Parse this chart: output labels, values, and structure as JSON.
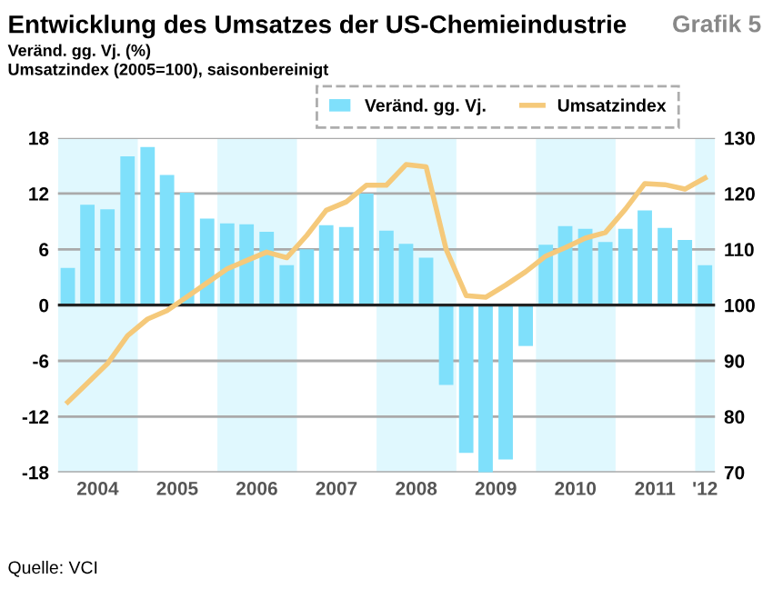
{
  "chart_data": {
    "type": "bar",
    "title": "Entwicklung des Umsatzes der US-Chemieindustrie",
    "subtitle": "Veränd. gg. Vj. (%)\nUmsatzindex (2005=100), saisonbereinigt",
    "x": [
      "2004-02-15",
      "2004-05-15",
      "2004-08-15",
      "2004-11-15",
      "2005-02-15",
      "2005-05-15",
      "2005-08-15",
      "2005-11-15",
      "2006-02-15",
      "2006-05-15",
      "2006-08-15",
      "2006-11-15",
      "2007-02-15",
      "2007-05-15",
      "2007-08-15",
      "2007-11-15",
      "2008-02-15",
      "2008-05-15",
      "2008-08-15",
      "2008-11-15",
      "2009-02-15",
      "2009-05-15",
      "2009-08-15",
      "2009-11-15",
      "2010-02-15",
      "2010-05-15",
      "2010-08-15",
      "2010-11-15",
      "2011-02-15",
      "2011-05-15",
      "2011-08-15",
      "2011-11-15",
      "2012-02-15"
    ],
    "series": [
      {
        "name": "Veränd. gg. Vj.",
        "color": "#7fe0fb",
        "values": [
          4,
          10.8,
          10.3,
          16,
          17,
          14,
          12.1,
          9.3,
          8.8,
          8.7,
          7.9,
          4.3,
          6,
          8.6,
          8.4,
          12,
          8,
          6.6,
          5.1,
          -8.6,
          -15.9,
          -18,
          -16.6,
          -4.4,
          6.5,
          8.5,
          8.2,
          6.8,
          8.2,
          10.2,
          8.3,
          7,
          4.3
        ]
      },
      {
        "name": "Umsatzindex",
        "type": "line",
        "axis": "y2",
        "color": "#f5c97a",
        "values": [
          82.6,
          86,
          89.5,
          94.5,
          97.5,
          99,
          101.5,
          104,
          106.5,
          108,
          109.5,
          108.5,
          112.5,
          117,
          118.5,
          121.5,
          121.5,
          125.2,
          124.8,
          110,
          101.7,
          101.4,
          103.6,
          106,
          108.8,
          110.3,
          112,
          113,
          117.2,
          121.8,
          121.6,
          120.8,
          122.8
        ]
      }
    ],
    "xlim": [
      "2004-01-01",
      "2012-04-01"
    ],
    "xticks": [
      {
        "value": "2004-07-01",
        "label": "2004"
      },
      {
        "value": "2005-07-01",
        "label": "2005"
      },
      {
        "value": "2006-07-01",
        "label": "2006"
      },
      {
        "value": "2007-07-01",
        "label": "2007"
      },
      {
        "value": "2008-07-01",
        "label": "2008"
      },
      {
        "value": "2009-07-01",
        "label": "2009"
      },
      {
        "value": "2010-07-01",
        "label": "2010"
      },
      {
        "value": "2011-07-01",
        "label": "2011"
      },
      {
        "value": "2012-02-15",
        "label": "'12"
      }
    ],
    "ylim": [
      -18,
      18
    ],
    "yticks": [
      -18,
      -12,
      -6,
      0,
      6,
      12,
      18
    ],
    "y2lim": [
      70,
      130
    ],
    "y2ticks": [
      70,
      80,
      90,
      100,
      110,
      120,
      130
    ],
    "bands": [
      {
        "axis": "x",
        "from": "2004-01-01",
        "to": "2005-01-01",
        "color": "#e0f8fe"
      },
      {
        "axis": "x",
        "from": "2006-01-01",
        "to": "2007-01-01",
        "color": "#e0f8fe"
      },
      {
        "axis": "x",
        "from": "2008-01-01",
        "to": "2009-01-01",
        "color": "#e0f8fe"
      },
      {
        "axis": "x",
        "from": "2010-01-01",
        "to": "2011-01-01",
        "color": "#e0f8fe"
      },
      {
        "axis": "x",
        "from": "2012-01-01",
        "to": "2012-04-01",
        "color": "#e0f8fe"
      }
    ],
    "ref_lines": [
      {
        "axis": "y",
        "value": 0,
        "color": "#222222"
      }
    ],
    "grid": "y",
    "legend": "top right",
    "marker": "none",
    "line_style": "solid",
    "annotations": [
      "Grafik 5",
      "Quelle: VCI"
    ]
  }
}
